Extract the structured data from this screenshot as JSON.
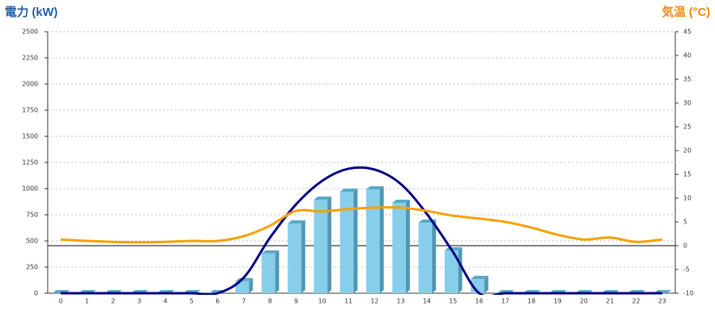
{
  "chart_data": {
    "type": "bar",
    "y_title": "電力 (kW)",
    "y2_title": "気温 (°C)",
    "categories": [
      "0",
      "1",
      "2",
      "3",
      "4",
      "5",
      "6",
      "7",
      "8",
      "9",
      "10",
      "11",
      "12",
      "13",
      "14",
      "15",
      "16",
      "17",
      "18",
      "19",
      "20",
      "21",
      "22",
      "23"
    ],
    "ylim": [
      0,
      2500
    ],
    "yticks": [
      0,
      250,
      500,
      750,
      1000,
      1250,
      1500,
      1750,
      2000,
      2250,
      2500
    ],
    "y2lim": [
      -10,
      45
    ],
    "y2ticks": [
      -10,
      -5,
      0,
      5,
      10,
      15,
      20,
      25,
      30,
      35,
      40,
      45
    ],
    "grid": true,
    "series": [
      {
        "kind": "bar",
        "color": "#87ceeb",
        "values": [
          0,
          0,
          0,
          0,
          0,
          0,
          0,
          115,
          380,
          667,
          894,
          970,
          992,
          864,
          674,
          409,
          136,
          0,
          0,
          0,
          0,
          0,
          0,
          0
        ]
      },
      {
        "kind": "line",
        "color": "#000080",
        "values": [
          0,
          0,
          0,
          0,
          0,
          0,
          0,
          150,
          530,
          850,
          1075,
          1190,
          1182,
          1045,
          758,
          394,
          0,
          0,
          0,
          0,
          0,
          0,
          0,
          0
        ]
      },
      {
        "kind": "line",
        "axis": "y2",
        "color": "#f5a000",
        "values": [
          1.3,
          1.0,
          0.8,
          0.7,
          0.8,
          1.0,
          1.0,
          2.0,
          4.2,
          7.3,
          7.2,
          7.7,
          8.0,
          8.0,
          7.3,
          6.3,
          5.7,
          5.0,
          3.8,
          2.3,
          1.3,
          1.7,
          0.8,
          1.3
        ]
      }
    ]
  }
}
